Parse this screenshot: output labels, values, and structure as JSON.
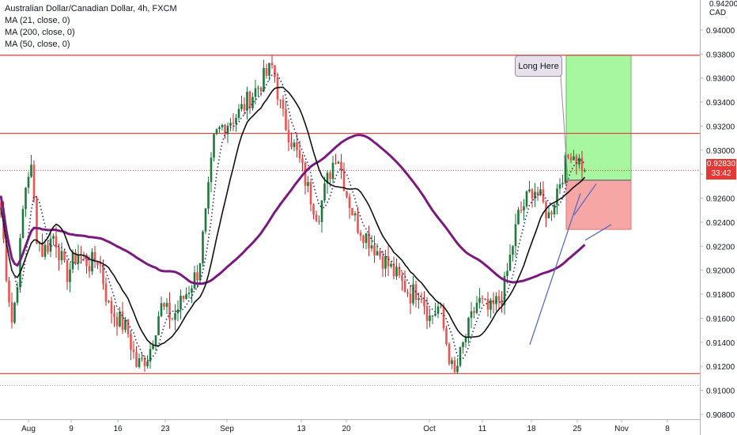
{
  "legend": {
    "title": "Australian Dollar/Canadian Dollar, 4h, FXCM",
    "ma21": "MA (21, close, 0)",
    "ma200": "MA (200, close, 0)",
    "ma50": "MA (50, close, 0)"
  },
  "annotation": {
    "text": "Long Here"
  },
  "price_tag": {
    "price": "0.92830",
    "countdown": "33:42"
  },
  "currency": {
    "top_tick": "0.94200",
    "unit": "CAD"
  },
  "colors": {
    "up": "#26a69a",
    "up_dark": "#1b7a3a",
    "down": "#ef5350",
    "down_dark": "#c62828",
    "ma21": "#2a2e75",
    "ma50": "#111111",
    "ma200": "#7b1a7e",
    "level_line": "#e53935",
    "target_zone": "#a6f7a0",
    "stop_zone": "#f7a6a6",
    "trendline": "#5c6bc0"
  },
  "chart_data": {
    "type": "candlestick",
    "title": "Australian Dollar/Canadian Dollar, 4h, FXCM",
    "ylabel": "CAD",
    "ylim": [
      0.9076,
      0.9425
    ],
    "y_ticks": [
      "0.90800",
      "0.91000",
      "0.91200",
      "0.91400",
      "0.91600",
      "0.91800",
      "0.92000",
      "0.92200",
      "0.92400",
      "0.92600",
      "0.92800",
      "0.93000",
      "0.93200",
      "0.93400",
      "0.93600",
      "0.93800",
      "0.94000"
    ],
    "x_ticks": [
      "Aug",
      "9",
      "16",
      "23",
      "Sep",
      "13",
      "20",
      "Oct",
      "11",
      "18",
      "25",
      "Nov",
      "8"
    ],
    "close_path": [
      [
        "Aug",
        0.926
      ],
      [
        "Aug",
        0.92
      ],
      [
        "Aug",
        0.9155
      ],
      [
        "Aug",
        0.92
      ],
      [
        "Aug",
        0.9265
      ],
      [
        "Aug",
        0.929
      ],
      [
        "Aug",
        0.923
      ],
      [
        "9",
        0.9215
      ],
      [
        "9",
        0.923
      ],
      [
        "9",
        0.9195
      ],
      [
        "9",
        0.9215
      ],
      [
        "16",
        0.9205
      ],
      [
        "16",
        0.921
      ],
      [
        "16",
        0.917
      ],
      [
        "16",
        0.916
      ],
      [
        "16",
        0.915
      ],
      [
        "23",
        0.912
      ],
      [
        "23",
        0.913
      ],
      [
        "23",
        0.917
      ],
      [
        "23",
        0.916
      ],
      [
        "Sep",
        0.92
      ],
      [
        "Sep",
        0.925
      ],
      [
        "Sep",
        0.931
      ],
      [
        "Sep",
        0.932
      ],
      [
        "Sep",
        0.9325
      ],
      [
        "Sep",
        0.933
      ],
      [
        "13",
        0.937
      ],
      [
        "13",
        0.933
      ],
      [
        "13",
        0.931
      ],
      [
        "13",
        0.929
      ],
      [
        "13",
        0.9265
      ],
      [
        "20",
        0.9245
      ],
      [
        "20",
        0.9275
      ],
      [
        "20",
        0.93
      ],
      [
        "20",
        0.9265
      ],
      [
        "20",
        0.924
      ],
      [
        "Oct",
        0.919
      ],
      [
        "Oct",
        0.918
      ],
      [
        "Oct",
        0.9185
      ],
      [
        "Oct",
        0.916
      ],
      [
        "Oct",
        0.917
      ],
      [
        "11",
        0.911
      ],
      [
        "11",
        0.9145
      ],
      [
        "11",
        0.9175
      ],
      [
        "11",
        0.9165
      ],
      [
        "18",
        0.918
      ],
      [
        "18",
        0.9245
      ],
      [
        "18",
        0.927
      ],
      [
        "25",
        0.9245
      ],
      [
        "25",
        0.9275
      ],
      [
        "25",
        0.93
      ],
      [
        "25",
        0.9283
      ]
    ],
    "moving_averages": [
      {
        "name": "MA (21, close, 0)",
        "style": "dotted"
      },
      {
        "name": "MA (50, close, 0)",
        "style": "solid"
      },
      {
        "name": "MA (200, close, 0)",
        "style": "solid-thick"
      }
    ],
    "horizontal_levels": [
      0.9379,
      0.9314,
      0.9114
    ],
    "current_price": 0.9283,
    "position": {
      "type": "long",
      "entry": 0.9275,
      "target": 0.9379,
      "stop": 0.9234
    }
  }
}
